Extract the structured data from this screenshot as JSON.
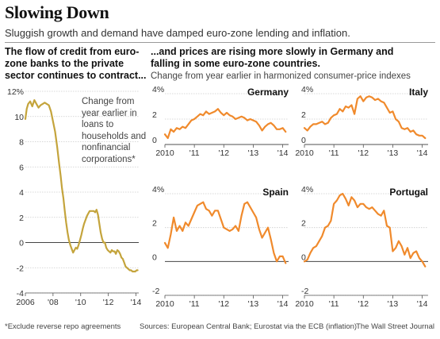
{
  "title": "Slowing Down",
  "subtitle": "Sluggish growth and demand have damped euro-zone lending and inflation.",
  "left_headline": "The flow of credit from euro-zone banks to the private sector continues to contract...",
  "right_headline": "...and prices are rising more slowly in Germany and falling in some euro-zone countries.",
  "right_note": "Change from year earlier in harmonized consumer-price indexes",
  "footnote": "*Exclude reverse repo agreements",
  "sources": "Sources: European Central Bank; Eurostat via the ECB (inflation)",
  "credit": "The Wall Street Journal",
  "colors": {
    "credit_line": "#c4a43c",
    "cpi_line": "#f08a2c",
    "grid": "#cccccc",
    "zero": "#444444"
  },
  "chart_data": [
    {
      "type": "line",
      "annotation": "Change from year earlier in loans to households and nonfinancial corporations*",
      "x_ticks": [
        "2006",
        "'08",
        "'10",
        "'12",
        "'14"
      ],
      "y_ticks": [
        "12%",
        "10",
        "8",
        "6",
        "4",
        "2",
        "0",
        "-2",
        "-4"
      ],
      "ylim": [
        -4,
        12
      ],
      "xlim": [
        2006,
        2014.2
      ],
      "grid": true,
      "series": [
        {
          "x": [
            2006.0,
            2006.1,
            2006.2,
            2006.35,
            2006.5,
            2006.65,
            2006.8,
            2006.95,
            2007.1,
            2007.25,
            2007.4,
            2007.55,
            2007.7,
            2007.85,
            2008.0,
            2008.15,
            2008.3,
            2008.45,
            2008.55,
            2008.65,
            2008.75,
            2008.85,
            2008.95,
            2009.05,
            2009.15,
            2009.25,
            2009.35,
            2009.45,
            2009.55,
            2009.65,
            2009.75,
            2009.85,
            2009.95,
            2010.05,
            2010.15,
            2010.25,
            2010.35,
            2010.45,
            2010.55,
            2010.65,
            2010.75,
            2010.85,
            2010.95,
            2011.05,
            2011.15,
            2011.25,
            2011.35,
            2011.45,
            2011.55,
            2011.65,
            2011.75,
            2011.85,
            2011.95,
            2012.05,
            2012.15,
            2012.25,
            2012.35,
            2012.45,
            2012.55,
            2012.65,
            2012.75,
            2012.85,
            2012.95,
            2013.05,
            2013.15,
            2013.25,
            2013.35,
            2013.45,
            2013.55,
            2013.65,
            2013.75,
            2013.85,
            2013.95,
            2014.05,
            2014.12
          ],
          "y": [
            9.8,
            10.6,
            11.0,
            11.2,
            10.8,
            11.3,
            11.0,
            10.7,
            10.9,
            11.0,
            11.1,
            11.0,
            10.9,
            10.4,
            9.6,
            8.8,
            7.6,
            6.2,
            5.3,
            4.3,
            3.5,
            2.5,
            1.6,
            0.8,
            0.2,
            -0.2,
            -0.5,
            -0.8,
            -0.6,
            -0.4,
            -0.5,
            -0.2,
            0.2,
            0.6,
            1.1,
            1.5,
            1.8,
            2.1,
            2.3,
            2.5,
            2.5,
            2.5,
            2.5,
            2.4,
            2.6,
            2.2,
            1.5,
            0.8,
            0.3,
            0.0,
            0.0,
            -0.4,
            -0.6,
            -0.7,
            -0.8,
            -0.6,
            -0.7,
            -0.7,
            -0.9,
            -0.6,
            -0.7,
            -0.9,
            -1.2,
            -1.3,
            -1.6,
            -1.9,
            -2.0,
            -2.1,
            -2.2,
            -2.2,
            -2.3,
            -2.3,
            -2.3,
            -2.2,
            -2.2
          ]
        }
      ]
    },
    {
      "type": "line",
      "title": "Germany",
      "x_ticks": [
        "2010",
        "'11",
        "'12",
        "'13",
        "'14"
      ],
      "y_ticks": [
        "4%",
        "2",
        "0"
      ],
      "ylim": [
        0,
        4
      ],
      "xlim": [
        2010,
        2014.2
      ],
      "grid": true,
      "series": [
        {
          "x": [
            2010.0,
            2010.1,
            2010.2,
            2010.3,
            2010.4,
            2010.5,
            2010.6,
            2010.7,
            2010.8,
            2010.9,
            2011.0,
            2011.1,
            2011.2,
            2011.3,
            2011.4,
            2011.5,
            2011.6,
            2011.7,
            2011.8,
            2011.9,
            2012.0,
            2012.1,
            2012.2,
            2012.3,
            2012.4,
            2012.5,
            2012.6,
            2012.7,
            2012.8,
            2012.9,
            2013.0,
            2013.1,
            2013.2,
            2013.3,
            2013.4,
            2013.5,
            2013.6,
            2013.7,
            2013.8,
            2013.9,
            2014.0,
            2014.1
          ],
          "y": [
            0.8,
            0.5,
            1.2,
            1.0,
            1.3,
            1.2,
            1.4,
            1.3,
            1.6,
            1.9,
            2.0,
            2.2,
            2.4,
            2.3,
            2.6,
            2.4,
            2.5,
            2.6,
            2.8,
            2.5,
            2.3,
            2.5,
            2.3,
            2.2,
            2.0,
            2.1,
            2.2,
            2.1,
            1.9,
            2.0,
            1.9,
            1.8,
            1.5,
            1.1,
            1.4,
            1.6,
            1.7,
            1.5,
            1.2,
            1.2,
            1.3,
            1.0
          ]
        }
      ]
    },
    {
      "type": "line",
      "title": "Italy",
      "x_ticks": [
        "2010",
        "'11",
        "'12",
        "'13",
        "'14"
      ],
      "y_ticks": [
        "4%",
        "2",
        "0"
      ],
      "ylim": [
        0,
        4
      ],
      "xlim": [
        2010,
        2014.2
      ],
      "grid": true,
      "series": [
        {
          "x": [
            2010.0,
            2010.1,
            2010.2,
            2010.3,
            2010.4,
            2010.5,
            2010.6,
            2010.7,
            2010.8,
            2010.9,
            2011.0,
            2011.1,
            2011.2,
            2011.3,
            2011.4,
            2011.5,
            2011.6,
            2011.7,
            2011.8,
            2011.9,
            2012.0,
            2012.1,
            2012.2,
            2012.3,
            2012.4,
            2012.5,
            2012.6,
            2012.7,
            2012.8,
            2012.9,
            2013.0,
            2013.1,
            2013.2,
            2013.3,
            2013.4,
            2013.5,
            2013.6,
            2013.7,
            2013.8,
            2013.9,
            2014.0,
            2014.1
          ],
          "y": [
            1.3,
            1.1,
            1.4,
            1.6,
            1.6,
            1.7,
            1.8,
            1.6,
            1.7,
            2.1,
            2.3,
            2.4,
            2.8,
            2.6,
            3.0,
            2.9,
            3.1,
            2.4,
            3.6,
            3.8,
            3.4,
            3.7,
            3.8,
            3.7,
            3.5,
            3.6,
            3.4,
            3.3,
            2.9,
            2.5,
            2.6,
            2.0,
            1.8,
            1.3,
            1.2,
            1.3,
            1.0,
            1.1,
            0.8,
            0.7,
            0.7,
            0.5
          ]
        }
      ]
    },
    {
      "type": "line",
      "title": "Spain",
      "x_ticks": [
        "2010",
        "'11",
        "'12",
        "'13",
        "'14"
      ],
      "y_ticks": [
        "4%",
        "2",
        "0",
        "-2"
      ],
      "ylim": [
        -2,
        4
      ],
      "xlim": [
        2010,
        2014.2
      ],
      "grid": true,
      "series": [
        {
          "x": [
            2010.0,
            2010.1,
            2010.2,
            2010.3,
            2010.4,
            2010.5,
            2010.6,
            2010.7,
            2010.8,
            2010.9,
            2011.0,
            2011.1,
            2011.2,
            2011.3,
            2011.4,
            2011.5,
            2011.6,
            2011.7,
            2011.8,
            2011.9,
            2012.0,
            2012.1,
            2012.2,
            2012.3,
            2012.4,
            2012.5,
            2012.6,
            2012.7,
            2012.8,
            2012.9,
            2013.0,
            2013.1,
            2013.2,
            2013.3,
            2013.4,
            2013.5,
            2013.6,
            2013.7,
            2013.8,
            2013.9,
            2014.0,
            2014.1
          ],
          "y": [
            1.1,
            0.8,
            1.6,
            2.6,
            1.8,
            2.1,
            1.8,
            2.3,
            2.1,
            2.5,
            2.9,
            3.3,
            3.4,
            3.5,
            3.1,
            3.0,
            2.7,
            3.0,
            3.0,
            2.5,
            2.0,
            1.9,
            1.8,
            1.9,
            2.1,
            1.8,
            2.7,
            3.4,
            3.5,
            3.2,
            2.9,
            2.6,
            1.9,
            1.4,
            1.7,
            2.0,
            1.3,
            0.5,
            0.0,
            0.3,
            0.3,
            -0.1
          ]
        }
      ]
    },
    {
      "type": "line",
      "title": "Portugal",
      "x_ticks": [
        "2010",
        "'11",
        "'12",
        "'13",
        "'14"
      ],
      "y_ticks": [
        "4%",
        "2",
        "0",
        "-2"
      ],
      "ylim": [
        -2,
        4
      ],
      "xlim": [
        2010,
        2014.2
      ],
      "grid": true,
      "series": [
        {
          "x": [
            2010.0,
            2010.1,
            2010.2,
            2010.3,
            2010.4,
            2010.5,
            2010.6,
            2010.7,
            2010.8,
            2010.9,
            2011.0,
            2011.1,
            2011.2,
            2011.3,
            2011.4,
            2011.5,
            2011.6,
            2011.7,
            2011.8,
            2011.9,
            2012.0,
            2012.1,
            2012.2,
            2012.3,
            2012.4,
            2012.5,
            2012.6,
            2012.7,
            2012.8,
            2012.9,
            2013.0,
            2013.1,
            2013.2,
            2013.3,
            2013.4,
            2013.5,
            2013.6,
            2013.7,
            2013.8,
            2013.9,
            2014.0,
            2014.1
          ],
          "y": [
            0.0,
            0.1,
            0.5,
            0.8,
            0.9,
            1.2,
            1.5,
            2.0,
            2.1,
            2.4,
            3.4,
            3.6,
            3.9,
            4.0,
            3.7,
            3.3,
            3.8,
            3.6,
            3.2,
            3.4,
            3.4,
            3.2,
            3.1,
            3.2,
            3.0,
            2.8,
            2.7,
            3.0,
            2.1,
            2.0,
            0.6,
            0.8,
            1.2,
            0.9,
            0.4,
            0.8,
            0.2,
            0.5,
            0.6,
            0.2,
            0.0,
            -0.3
          ]
        }
      ]
    }
  ]
}
